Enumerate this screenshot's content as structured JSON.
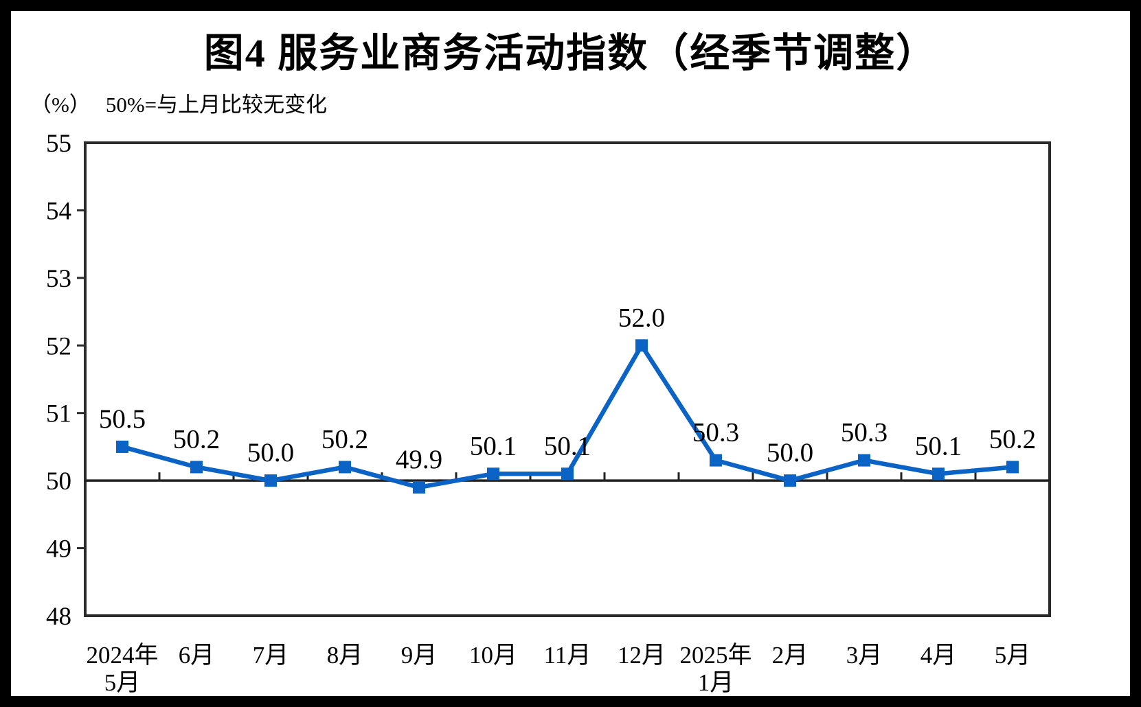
{
  "page": {
    "title": "图4  服务业商务活动指数（经季节调整）",
    "unit_label": "（%）",
    "baseline_note": "50%=与上月比较无变化"
  },
  "chart_data": {
    "type": "line",
    "title": "图4 服务业商务活动指数（经季节调整）",
    "unit": "%",
    "annotation": "50%=与上月比较无变化",
    "categories": [
      [
        "2024年",
        "5月"
      ],
      [
        "6月"
      ],
      [
        "7月"
      ],
      [
        "8月"
      ],
      [
        "9月"
      ],
      [
        "10月"
      ],
      [
        "11月"
      ],
      [
        "12月"
      ],
      [
        "2025年",
        "1月"
      ],
      [
        "2月"
      ],
      [
        "3月"
      ],
      [
        "4月"
      ],
      [
        "5月"
      ]
    ],
    "values": [
      50.5,
      50.2,
      50.0,
      50.2,
      49.9,
      50.1,
      50.1,
      52.0,
      50.3,
      50.0,
      50.3,
      50.1,
      50.2
    ],
    "data_labels": [
      "50.5",
      "50.2",
      "50.0",
      "50.2",
      "49.9",
      "50.1",
      "50.1",
      "52.0",
      "50.3",
      "50.0",
      "50.3",
      "50.1",
      "50.2"
    ],
    "ylim": [
      48,
      55
    ],
    "yticks": [
      55,
      54,
      53,
      52,
      51,
      50,
      49,
      48
    ],
    "baseline_value": 50,
    "grid": "baseline-only",
    "legend_position": "none",
    "series_name": "服务业商务活动指数",
    "line_color": "#0B63C5",
    "marker": "square",
    "axis_color": "#2b2b2b",
    "text_color": "#000000"
  }
}
